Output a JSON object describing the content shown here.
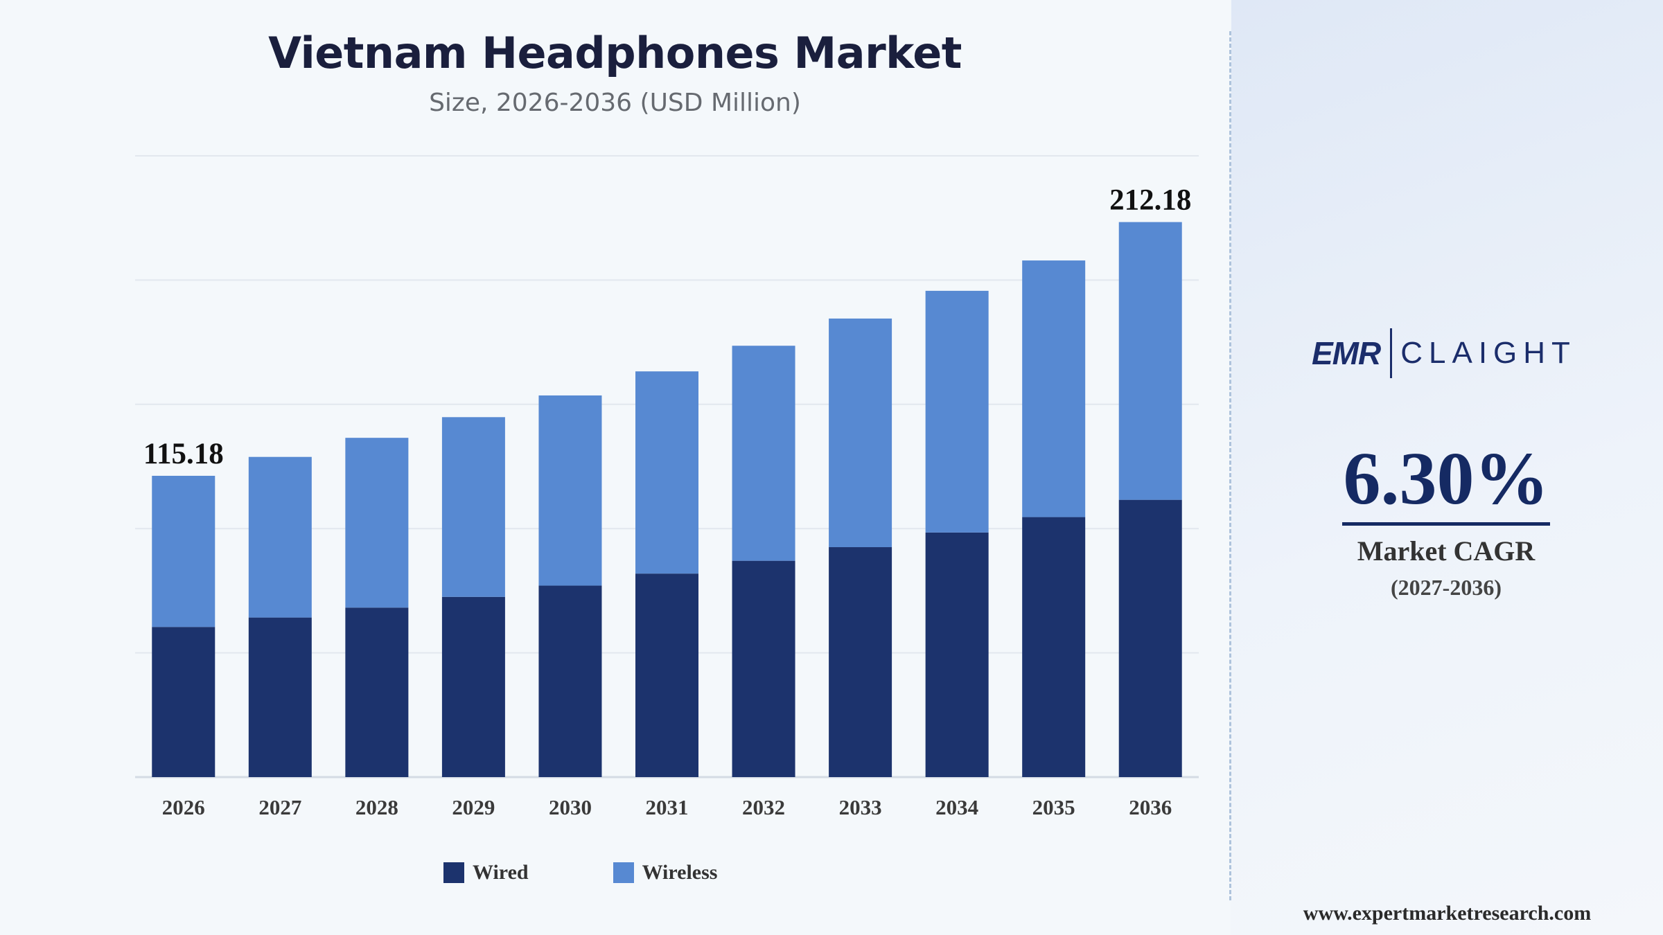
{
  "header": {
    "title": "Vietnam Headphones Market",
    "subtitle": "Size, 2026-2036 (USD Million)"
  },
  "chart_data": {
    "type": "bar",
    "stacked": true,
    "categories": [
      "2026",
      "2027",
      "2028",
      "2029",
      "2030",
      "2031",
      "2032",
      "2033",
      "2034",
      "2035",
      "2036"
    ],
    "series": [
      {
        "name": "Wired",
        "color": "#1c336d",
        "values": [
          57.4,
          61.0,
          64.8,
          68.9,
          73.2,
          77.8,
          82.7,
          87.9,
          93.5,
          99.4,
          106.0
        ]
      },
      {
        "name": "Wireless",
        "color": "#5789d2",
        "values": [
          57.78,
          61.4,
          64.9,
          68.7,
          72.7,
          77.3,
          82.2,
          87.4,
          92.4,
          98.1,
          106.18
        ]
      }
    ],
    "data_labels": [
      {
        "category": "2026",
        "text": "115.18"
      },
      {
        "category": "2036",
        "text": "212.18"
      }
    ],
    "ylim": [
      0,
      237.5
    ],
    "grid": true,
    "legend": {
      "position": "bottom"
    }
  },
  "sidebar": {
    "logo": {
      "emr": "EMR",
      "claight": "CLAIGHT"
    },
    "cagr": {
      "value": "6.30%",
      "label": "Market CAGR",
      "period": "(2027-2036)"
    },
    "website": "www.expertmarketresearch.com"
  },
  "colors": {
    "wired": "#1c336d",
    "wireless": "#5789d2",
    "accent": "#152a63"
  }
}
